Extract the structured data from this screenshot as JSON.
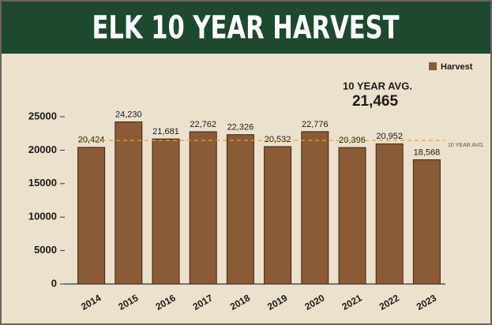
{
  "chart_data": {
    "type": "bar",
    "title": "ELK 10 YEAR HARVEST",
    "categories": [
      "2014",
      "2015",
      "2016",
      "2017",
      "2018",
      "2019",
      "2020",
      "2021",
      "2022",
      "2023"
    ],
    "series": [
      {
        "name": "Harvest",
        "color": "#8b5a36",
        "values": [
          20424,
          24230,
          21681,
          22762,
          22326,
          20532,
          22776,
          20396,
          20952,
          18568
        ],
        "value_labels": [
          "20,424",
          "24,230",
          "21,681",
          "22,762",
          "22,326",
          "20,532",
          "22,776",
          "20,396",
          "20,952",
          "18,568"
        ]
      }
    ],
    "ylim": [
      0,
      25000
    ],
    "yticks": [
      0,
      5000,
      10000,
      15000,
      20000,
      25000
    ],
    "legend": "top-right",
    "average": {
      "value": 21465,
      "label": "21,465"
    },
    "average_title": "10 YEAR AVG.",
    "average_side_label": "10 YEAR AVG.",
    "average_color": "#e0a43a"
  }
}
